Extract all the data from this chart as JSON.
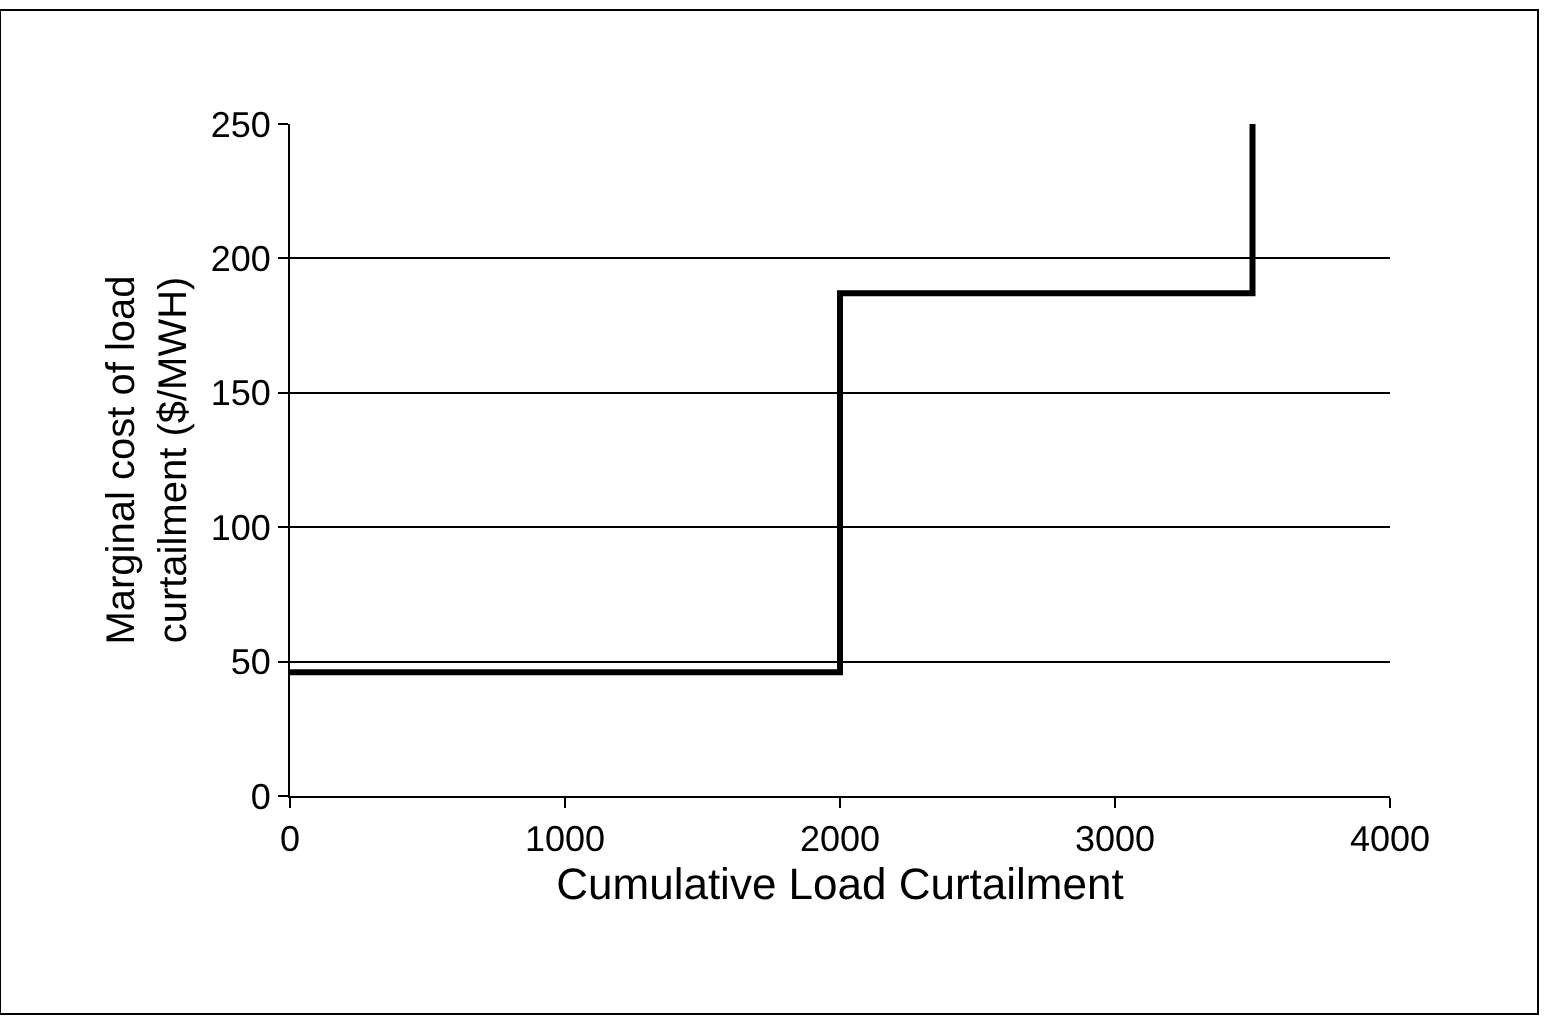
{
  "chart_data": {
    "type": "step",
    "xlabel": "Cumulative Load Curtailment",
    "ylabel": "Marginal cost of load\ncurtailment ($/MWH)",
    "x": [
      0,
      2000,
      3500
    ],
    "series": [
      {
        "color": "#000000",
        "values": [
          46,
          187,
          250
        ]
      }
    ],
    "xlim": [
      0,
      4000
    ],
    "xticks": [
      0,
      1000,
      2000,
      3000,
      4000
    ],
    "ylim": [
      0,
      250
    ],
    "yticks": [
      0,
      50,
      100,
      150,
      200,
      250
    ],
    "grid": "y",
    "marker": "none",
    "line_style": "solid"
  }
}
